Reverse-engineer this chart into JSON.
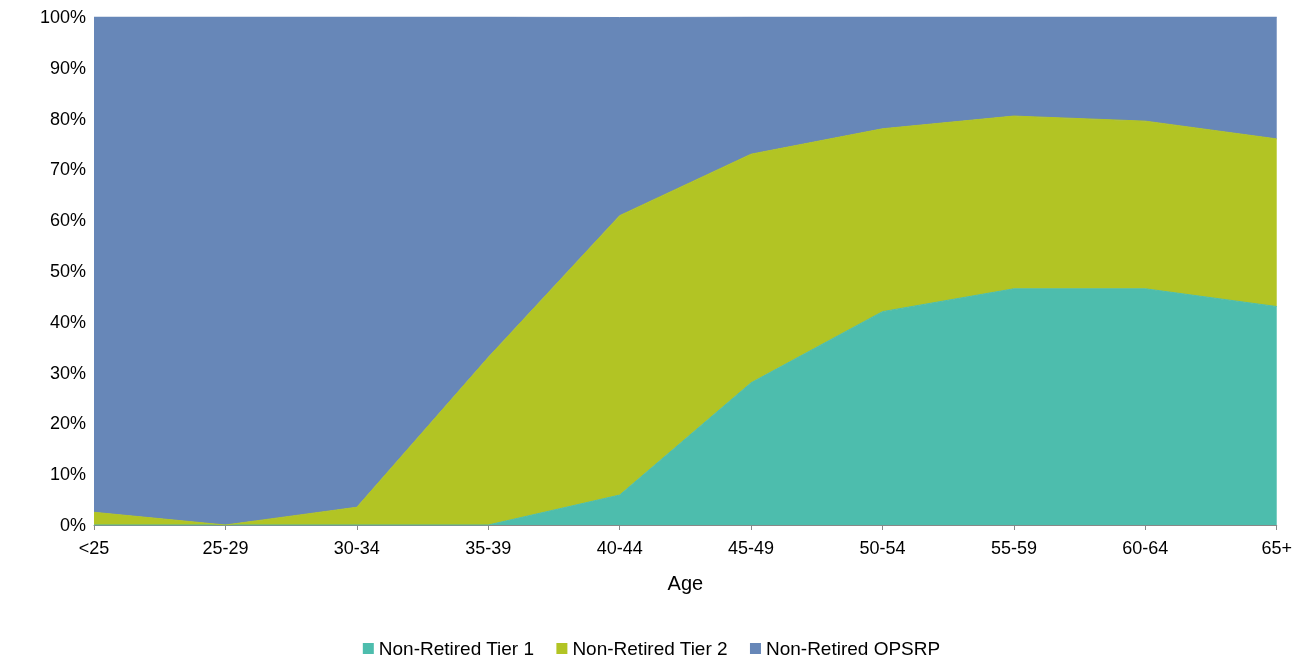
{
  "chart_data": {
    "type": "area",
    "stacked": true,
    "xlabel": "Age",
    "categories": [
      "<25",
      "25-29",
      "30-34",
      "35-39",
      "40-44",
      "45-49",
      "50-54",
      "55-59",
      "60-64",
      "65+"
    ],
    "series": [
      {
        "name": "Non-Retired Tier 1",
        "color": "#4dbdad",
        "values": [
          0,
          0,
          0,
          0,
          5.9,
          28,
          42,
          46.5,
          46.5,
          43
        ]
      },
      {
        "name": "Non-Retired Tier 2",
        "color": "#b2c424",
        "values": [
          2.5,
          0,
          3.5,
          33,
          55,
          45,
          36,
          34,
          33,
          33
        ]
      },
      {
        "name": "Non-Retired OPSRP",
        "color": "#6787b8",
        "values": [
          97.5,
          100,
          96.5,
          67,
          39,
          27,
          22,
          19.5,
          20.5,
          24
        ]
      }
    ],
    "ylim": [
      0,
      100
    ],
    "yticks": [
      {
        "value": 0,
        "label": "0%"
      },
      {
        "value": 10,
        "label": "10%"
      },
      {
        "value": 20,
        "label": "20%"
      },
      {
        "value": 30,
        "label": "30%"
      },
      {
        "value": 40,
        "label": "40%"
      },
      {
        "value": 50,
        "label": "50%"
      },
      {
        "value": 60,
        "label": "60%"
      },
      {
        "value": 70,
        "label": "70%"
      },
      {
        "value": 80,
        "label": "80%"
      },
      {
        "value": 90,
        "label": "90%"
      },
      {
        "value": 100,
        "label": "100%"
      }
    ],
    "grid": false,
    "legend": "bottom"
  }
}
